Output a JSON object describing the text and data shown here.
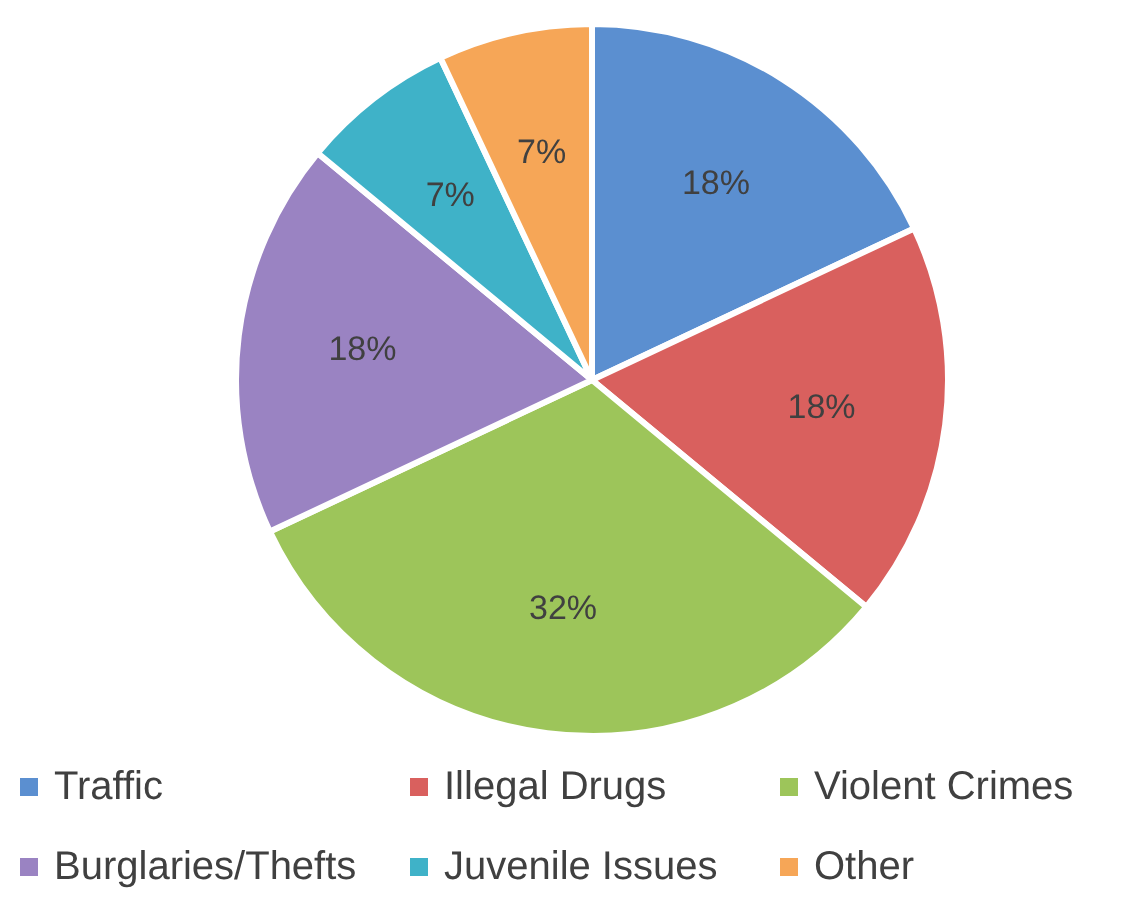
{
  "chart_data": {
    "type": "pie",
    "categories": [
      "Traffic",
      "Illegal Drugs",
      "Violent Crimes",
      "Burglaries/Thefts",
      "Juvenile Issues",
      "Other"
    ],
    "values": [
      18,
      18,
      32,
      18,
      7,
      7
    ],
    "colors": [
      "#5b8fd0",
      "#d9605e",
      "#9dc55a",
      "#9a83c2",
      "#3fb2c8",
      "#f6a657"
    ],
    "value_labels": [
      "18%",
      "18%",
      "32%",
      "18%",
      "7%",
      "7%"
    ],
    "legend": "bottom"
  }
}
